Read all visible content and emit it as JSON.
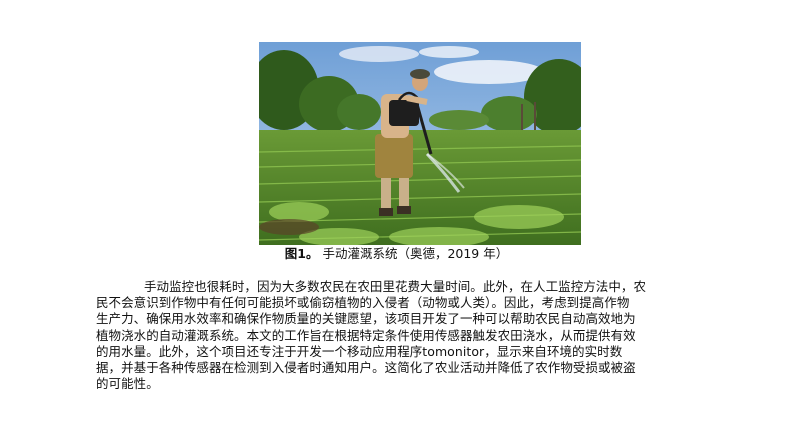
{
  "figure": {
    "label": "图1。",
    "caption": "手动灌溉系统（奥德，2019 年）"
  },
  "paragraph": {
    "lines": [
      "手动监控也很耗时，因为大多数农民在农田里花费大量时间。此外，在人工监控方法中，农",
      "民不会意识到作物中有任何可能损坏或偷窃植物的入侵者（动物或人类）。因此，考虑到提高作物",
      "生产力、确保用水效率和确保作物质量的关键愿望，该项目开发了一种可以帮助农民自动高效地为",
      "植物浇水的自动灌溉系统。本文的工作旨在根据特定条件使用传感器触发农田浇水，从而提供有效",
      "的用水量。此外，这个项目还专注于开发一个移动应用程序tomonitor，显示来自环境的实时数",
      "据，并基于各种传感器在检测到入侵者时通知用户。这简化了农业活动并降低了农作物受损或被盗",
      "的可能性。"
    ]
  }
}
